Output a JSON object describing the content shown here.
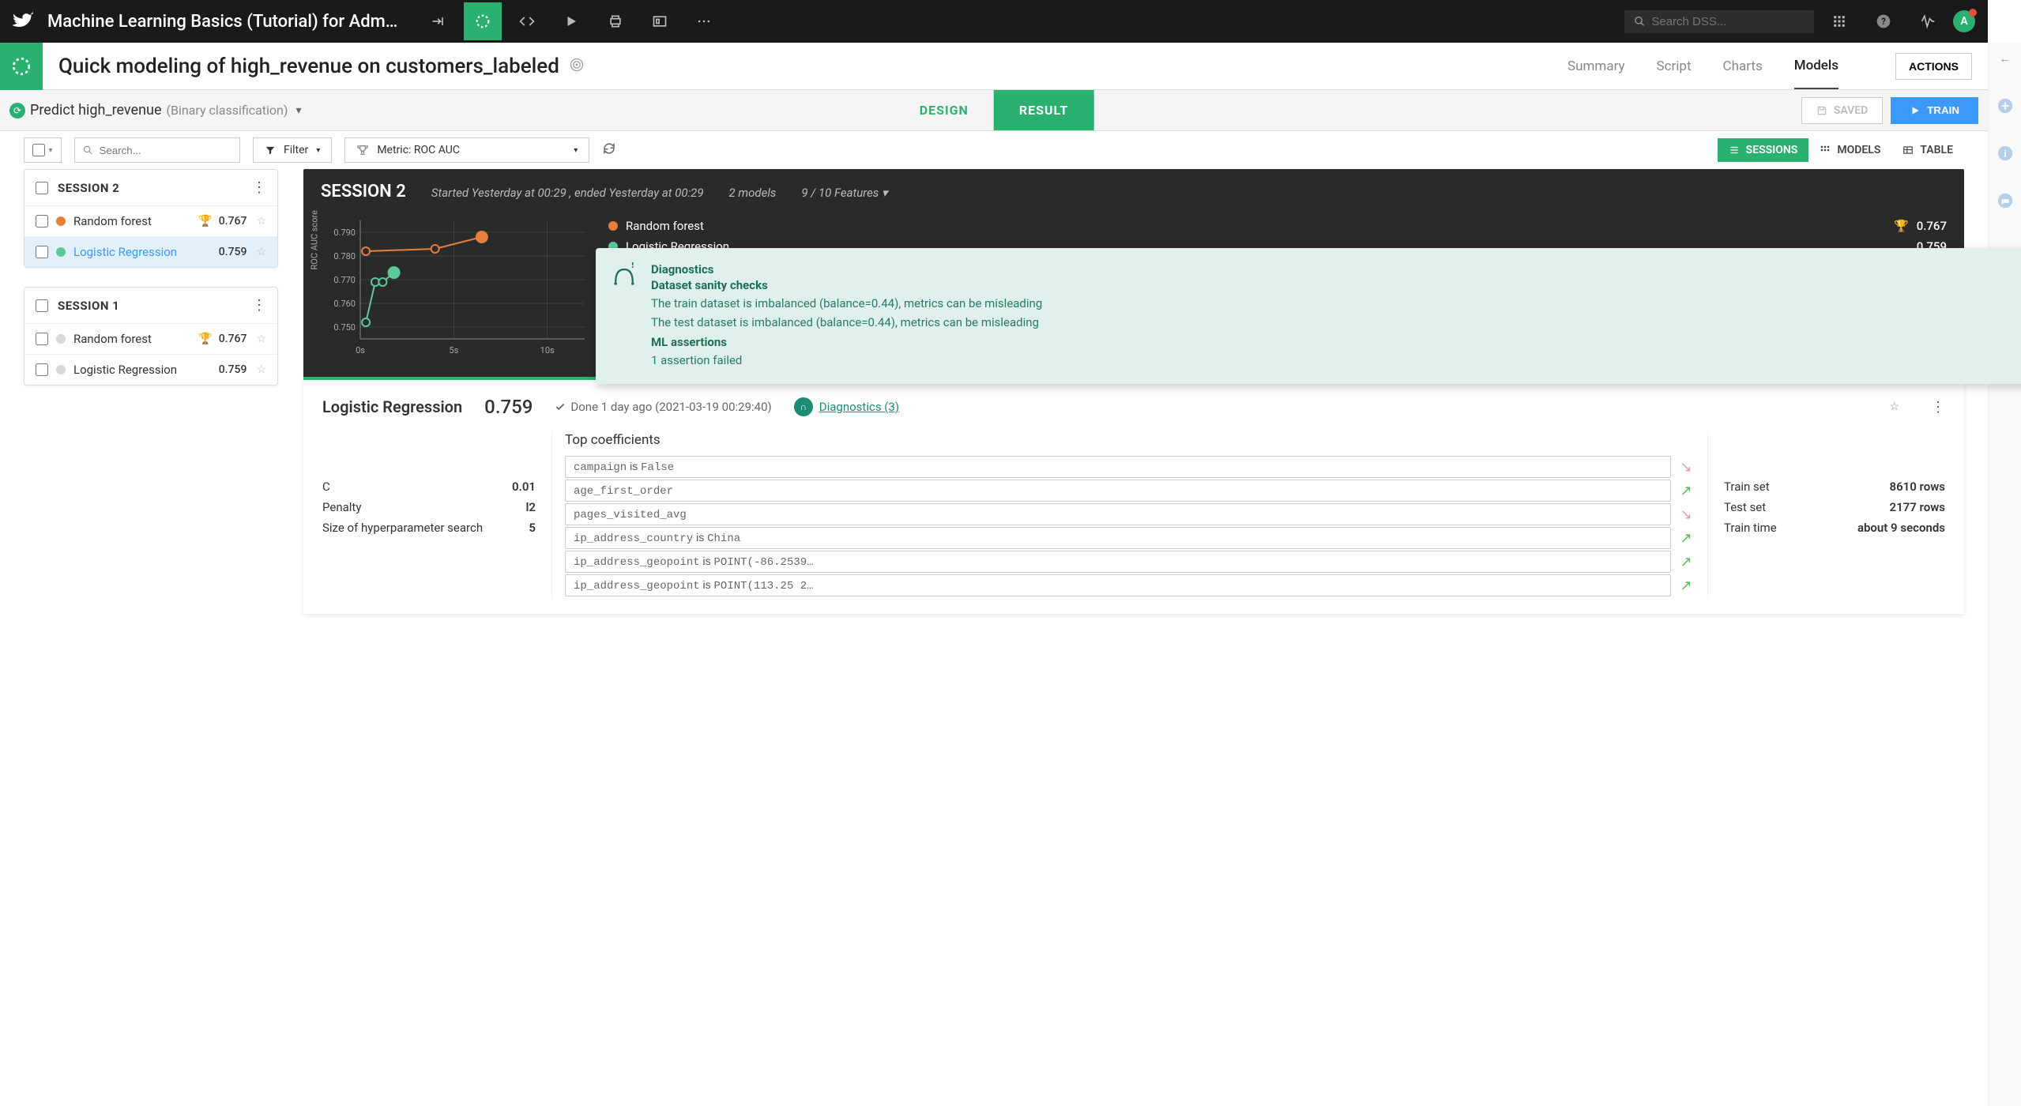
{
  "topbar": {
    "project_title": "Machine Learning Basics (Tutorial) for Adm…",
    "search_placeholder": "Search DSS...",
    "avatar_initial": "A"
  },
  "titlebar": {
    "page_title": "Quick modeling of high_revenue on customers_labeled",
    "tabs": {
      "summary": "Summary",
      "script": "Script",
      "charts": "Charts",
      "models": "Models"
    },
    "actions_label": "ACTIONS"
  },
  "subheader": {
    "predict_label": "Predict high_revenue",
    "predict_sub": "(Binary classification)",
    "design_label": "DESIGN",
    "result_label": "RESULT",
    "saved_label": "SAVED",
    "train_label": "TRAIN"
  },
  "toolbar": {
    "search_placeholder": "Search...",
    "filter_label": "Filter",
    "metric_prefix": "Metric: ",
    "metric_value": "ROC AUC",
    "view_sessions": "SESSIONS",
    "view_models": "MODELS",
    "view_table": "TABLE"
  },
  "sessions": [
    {
      "title": "SESSION 2",
      "models": [
        {
          "name": "Random forest",
          "score": "0.767",
          "color": "#e67e3c",
          "trophy": true,
          "selected": false
        },
        {
          "name": "Logistic Regression",
          "score": "0.759",
          "color": "#5cc99a",
          "trophy": false,
          "selected": true
        }
      ]
    },
    {
      "title": "SESSION 1",
      "models": [
        {
          "name": "Random forest",
          "score": "0.767",
          "color": "#d8d8d8",
          "trophy": true,
          "selected": false
        },
        {
          "name": "Logistic Regression",
          "score": "0.759",
          "color": "#d8d8d8",
          "trophy": false,
          "selected": false
        }
      ]
    }
  ],
  "detail_header": {
    "title": "SESSION 2",
    "meta_started": "Started Yesterday at 00:29 , ended Yesterday at 00:29",
    "meta_models": "2 models",
    "meta_features": "9 / 10 Features",
    "chart": {
      "ylabel": "ROC AUC score",
      "yticks": [
        "0.790",
        "0.780",
        "0.770",
        "0.760",
        "0.750"
      ],
      "ylim": [
        0.745,
        0.795
      ],
      "xticks": [
        "0s",
        "5s",
        "10s"
      ],
      "xlim": [
        0,
        12
      ],
      "series": [
        {
          "color": "#e67e3c",
          "points": [
            [
              0.3,
              0.782
            ],
            [
              4.0,
              0.783
            ],
            [
              6.5,
              0.788
            ]
          ]
        },
        {
          "color": "#5cc99a",
          "points": [
            [
              0.3,
              0.752
            ],
            [
              0.8,
              0.769
            ],
            [
              1.2,
              0.769
            ],
            [
              1.8,
              0.773
            ]
          ]
        }
      ],
      "grid_color": "#555",
      "axis_color": "#888"
    },
    "legend": [
      {
        "name": "Random forest",
        "score": "0.767",
        "color": "#e67e3c",
        "trophy": true
      },
      {
        "name": "Logistic Regression",
        "score": "0.759",
        "color": "#5cc99a",
        "trophy": false
      }
    ]
  },
  "diagnostics_popup": {
    "title": "Diagnostics",
    "subtitle": "Dataset sanity checks",
    "line1": "The train dataset is imbalanced (balance=0.44), metrics can be misleading",
    "line2": "The test dataset is imbalanced (balance=0.44), metrics can be misleading",
    "ml_title": "ML assertions",
    "ml_line": "1 assertion failed"
  },
  "model_detail": {
    "name": "Logistic Regression",
    "score": "0.759",
    "done": "Done 1 day ago (2021-03-19 00:29:40)",
    "diag_link": "Diagnostics (3)",
    "params": [
      {
        "label": "C",
        "value": "0.01"
      },
      {
        "label": "Penalty",
        "value": "l2"
      },
      {
        "label": "Size of hyperparameter search",
        "value": "5"
      }
    ],
    "coefs_title": "Top coefficients",
    "coefs": [
      {
        "text1": "campaign",
        "mid": " is ",
        "text2": "False",
        "dir": "down"
      },
      {
        "text1": "age_first_order",
        "mid": "",
        "text2": "",
        "dir": "up"
      },
      {
        "text1": "pages_visited_avg",
        "mid": "",
        "text2": "",
        "dir": "down"
      },
      {
        "text1": "ip_address_country",
        "mid": " is ",
        "text2": "China",
        "dir": "up"
      },
      {
        "text1": "ip_address_geopoint",
        "mid": " is ",
        "text2": "POINT(-86.2539…",
        "dir": "up"
      },
      {
        "text1": "ip_address_geopoint",
        "mid": " is ",
        "text2": "POINT(113.25 2…",
        "dir": "up"
      }
    ],
    "stats": [
      {
        "label": "Train set",
        "value": "8610 rows"
      },
      {
        "label": "Test set",
        "value": "2177 rows"
      },
      {
        "label": "Train time",
        "value": "about 9 seconds"
      }
    ]
  }
}
